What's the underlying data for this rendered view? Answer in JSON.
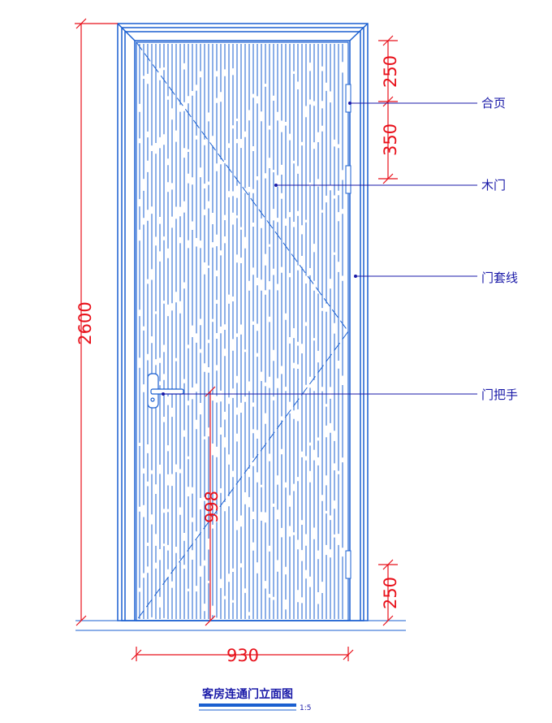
{
  "dimensions": {
    "total_height": "2600",
    "width": "930",
    "hinge_top_offset": "250",
    "hinge_spacing": "350",
    "hinge_bottom_offset": "250",
    "handle_height": "998"
  },
  "callouts": {
    "hinge": "合页",
    "wood_door": "木门",
    "door_casing": "门套线",
    "door_handle": "门把手"
  },
  "title": {
    "text": "客房连通门立面图",
    "scale": "1:5"
  },
  "colors": {
    "line": "#1a5fd0",
    "dimension": "#e8101a",
    "text": "#1a1aa8"
  }
}
